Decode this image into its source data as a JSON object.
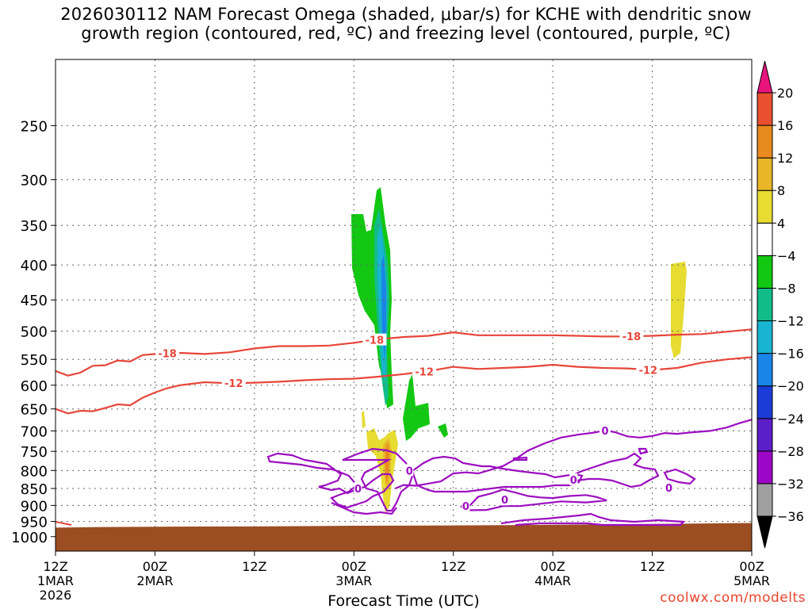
{
  "title": {
    "line1": "2026030112 NAM Forecast Omega (shaded, μbar/s) for KCHE with dendritic snow",
    "line2": "growth region (contoured, red, ºC) and freezing level (contoured, purple, ºC)"
  },
  "credit": "coolwx.com/modelts",
  "chart_data": {
    "type": "time-height contour",
    "xlabel": "Forecast Time (UTC)",
    "x_ticks": [
      {
        "hour": 0,
        "line1": "12Z",
        "line2": "1MAR",
        "line3": "2026"
      },
      {
        "hour": 12,
        "line1": "00Z",
        "line2": "2MAR",
        "line3": ""
      },
      {
        "hour": 24,
        "line1": "12Z",
        "line2": "",
        "line3": ""
      },
      {
        "hour": 36,
        "line1": "00Z",
        "line2": "3MAR",
        "line3": ""
      },
      {
        "hour": 48,
        "line1": "12Z",
        "line2": "",
        "line3": ""
      },
      {
        "hour": 60,
        "line1": "00Z",
        "line2": "4MAR",
        "line3": ""
      },
      {
        "hour": 72,
        "line1": "12Z",
        "line2": "",
        "line3": ""
      },
      {
        "hour": 84,
        "line1": "00Z",
        "line2": "5MAR",
        "line3": ""
      }
    ],
    "y_axis": {
      "label": "",
      "scale": "log-pressure (hPa), inverted",
      "range": [
        1050,
        200
      ]
    },
    "y_ticks": [
      250,
      300,
      350,
      400,
      450,
      500,
      550,
      600,
      650,
      700,
      750,
      800,
      850,
      900,
      950,
      1000
    ],
    "grid": true,
    "colorbar": {
      "levels": [
        -36,
        -32,
        -28,
        -24,
        -20,
        -16,
        -12,
        -8,
        -4,
        4,
        8,
        12,
        16,
        20
      ],
      "colors": [
        "#a0a0a0",
        "#9c06c6",
        "#5b1ec8",
        "#1c3cd8",
        "#1a84e8",
        "#18b4d0",
        "#12bc8a",
        "#12c812",
        "#ffffff",
        "#e6dc32",
        "#e8b428",
        "#e88a1e",
        "#e85030"
      ],
      "under_color": "#000000",
      "over_color": "#e8157d"
    },
    "terrain": {
      "color": "#9c4e22",
      "surface_pressure": [
        [
          0,
          970
        ],
        [
          6,
          968
        ],
        [
          12,
          967
        ],
        [
          24,
          966
        ],
        [
          36,
          964
        ],
        [
          48,
          963
        ],
        [
          60,
          961
        ],
        [
          72,
          958
        ],
        [
          84,
          955
        ]
      ]
    },
    "contours": {
      "minus18": {
        "color": "#e8453a",
        "label": "-18",
        "label_hours": [
          13.5,
          38.5,
          69.5
        ],
        "points": [
          [
            0,
            572
          ],
          [
            1.5,
            581
          ],
          [
            3,
            575
          ],
          [
            4.5,
            562
          ],
          [
            6,
            561
          ],
          [
            7.5,
            552
          ],
          [
            9,
            554
          ],
          [
            10.5,
            542
          ],
          [
            12,
            540
          ],
          [
            15,
            538
          ],
          [
            18,
            540
          ],
          [
            21,
            537
          ],
          [
            24,
            530
          ],
          [
            27,
            526
          ],
          [
            30,
            526
          ],
          [
            33,
            525
          ],
          [
            36,
            520
          ],
          [
            39,
            514
          ],
          [
            42,
            510
          ],
          [
            45,
            508
          ],
          [
            48,
            502
          ],
          [
            51,
            507
          ],
          [
            54,
            507
          ],
          [
            57,
            507
          ],
          [
            60,
            507
          ],
          [
            63,
            508
          ],
          [
            66,
            509
          ],
          [
            69,
            509
          ],
          [
            72,
            508
          ],
          [
            75,
            506
          ],
          [
            78,
            505
          ],
          [
            81,
            501
          ],
          [
            84,
            497
          ]
        ]
      },
      "minus12": {
        "color": "#e8453a",
        "label": "-12",
        "label_hours": [
          21.5,
          44.5,
          71.5
        ],
        "points": [
          [
            0,
            650
          ],
          [
            1.5,
            660
          ],
          [
            3,
            654
          ],
          [
            4.5,
            655
          ],
          [
            6,
            648
          ],
          [
            7.5,
            640
          ],
          [
            9,
            642
          ],
          [
            10.5,
            626
          ],
          [
            12,
            615
          ],
          [
            13.5,
            606
          ],
          [
            15,
            600
          ],
          [
            18,
            594
          ],
          [
            21,
            596
          ],
          [
            24,
            595
          ],
          [
            27,
            593
          ],
          [
            30,
            590
          ],
          [
            33,
            588
          ],
          [
            36,
            587
          ],
          [
            39,
            583
          ],
          [
            42,
            578
          ],
          [
            45,
            572
          ],
          [
            48,
            564
          ],
          [
            51,
            568
          ],
          [
            54,
            566
          ],
          [
            57,
            564
          ],
          [
            60,
            560
          ],
          [
            63,
            564
          ],
          [
            66,
            566
          ],
          [
            69,
            567
          ],
          [
            72,
            570
          ],
          [
            75,
            566
          ],
          [
            78,
            556
          ],
          [
            81,
            550
          ],
          [
            84,
            546
          ]
        ]
      },
      "freezing_upper": {
        "color": "#9c0dc0",
        "label": "0",
        "label_hours": [
          66.3
        ],
        "points": [
          [
            41,
            850
          ],
          [
            42,
            840
          ],
          [
            43.5,
            842
          ],
          [
            45,
            836
          ],
          [
            46.5,
            830
          ],
          [
            48,
            808
          ],
          [
            49.5,
            805
          ],
          [
            51,
            808
          ],
          [
            52.5,
            798
          ],
          [
            54,
            788
          ],
          [
            55.5,
            770
          ],
          [
            57,
            748
          ],
          [
            59,
            730
          ],
          [
            61,
            716
          ],
          [
            63,
            709
          ],
          [
            65,
            704
          ],
          [
            66.3,
            699
          ],
          [
            67.5,
            703
          ],
          [
            69,
            713
          ],
          [
            70.5,
            716
          ],
          [
            72,
            712
          ],
          [
            73.5,
            705
          ],
          [
            75,
            707
          ],
          [
            77,
            703
          ],
          [
            79,
            700
          ],
          [
            81,
            692
          ],
          [
            82.5,
            682
          ],
          [
            84,
            674
          ]
        ]
      },
      "freezing_lower": {
        "color": "#9c0dc0",
        "label": "0",
        "label_hours": [
          54.5,
          65.3,
          62.5,
          42.7,
          36.5,
          74
        ],
        "points": [
          [
            49,
            905
          ],
          [
            50,
            900
          ],
          [
            51,
            874
          ],
          [
            52.5,
            865
          ],
          [
            54,
            853
          ],
          [
            55.5,
            862
          ],
          [
            57,
            872
          ],
          [
            58.5,
            876
          ],
          [
            60,
            878
          ],
          [
            62,
            872
          ],
          [
            64,
            869
          ],
          [
            65.3,
            875
          ],
          [
            66.5,
            885
          ],
          [
            64,
            891
          ],
          [
            61,
            888
          ],
          [
            58.5,
            895
          ],
          [
            56,
            902
          ],
          [
            54,
            902
          ],
          [
            52,
            914
          ],
          [
            49.5,
            915
          ]
        ]
      }
    },
    "omega_regions": [
      {
        "value_range": [
          -8,
          -4
        ],
        "color": "#12c812"
      },
      {
        "value_range": [
          -12,
          -8
        ],
        "color": "#12bc8a"
      },
      {
        "value_range": [
          -16,
          -12
        ],
        "color": "#18b4d0"
      },
      {
        "value_range": [
          -20,
          -16
        ],
        "color": "#1a84e8"
      },
      {
        "value_range": [
          4,
          8
        ],
        "color": "#e6dc32"
      },
      {
        "value_range": [
          8,
          12
        ],
        "color": "#e8b428"
      },
      {
        "value_range": [
          12,
          16
        ],
        "color": "#e88a1e"
      }
    ]
  }
}
